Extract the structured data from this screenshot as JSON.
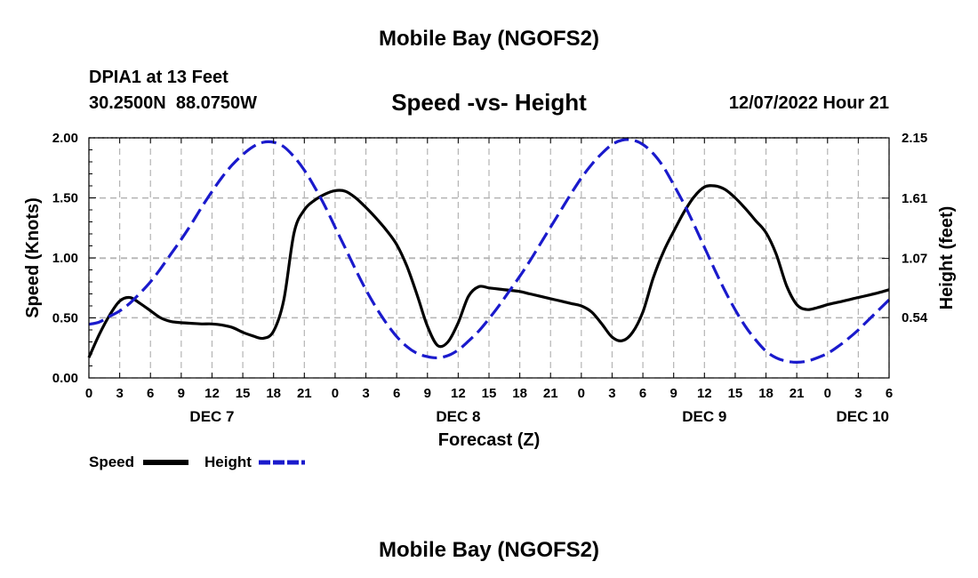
{
  "header": {
    "main_title": "Mobile Bay (NGOFS2)",
    "station": "DPIA1 at 13 Feet",
    "coords": "30.2500N  88.0750W",
    "subtitle": "Speed -vs- Height",
    "datetime": "12/07/2022 Hour 21"
  },
  "footer": {
    "title": "Mobile Bay (NGOFS2)"
  },
  "colors": {
    "speed": "#000000",
    "height": "#1a1acc",
    "grid": "#b4b4b4"
  },
  "chart_data": {
    "type": "line",
    "title": "Speed -vs- Height",
    "xlabel": "Forecast (Z)",
    "ylabel_left": "Speed (Knots)",
    "ylabel_right": "Height (feet)",
    "x_unit": "hours since 2022-12-07 00Z",
    "xlim": [
      0,
      78
    ],
    "ylim_left": [
      0,
      2.0
    ],
    "ylim_right": [
      0.0,
      2.15
    ],
    "left_ticks": [
      "0.00",
      "0.50",
      "1.00",
      "1.50",
      "2.00"
    ],
    "right_ticks": [
      "0.54",
      "1.07",
      "1.61",
      "2.15"
    ],
    "right_tick_values": [
      0.54,
      1.07,
      1.61,
      2.15
    ],
    "x_tick_labels": [
      "0",
      "3",
      "6",
      "9",
      "12",
      "15",
      "18",
      "21",
      "0",
      "3",
      "6",
      "9",
      "12",
      "15",
      "18",
      "21",
      "0",
      "3",
      "6",
      "9",
      "12",
      "15",
      "18",
      "21",
      "0",
      "3",
      "6"
    ],
    "date_labels": [
      {
        "label": "DEC 7",
        "hour": 12
      },
      {
        "label": "DEC 8",
        "hour": 36
      },
      {
        "label": "DEC 9",
        "hour": 60
      },
      {
        "label": "DEC 10",
        "hour": 78
      }
    ],
    "legend": [
      {
        "name": "Speed",
        "style": "solid"
      },
      {
        "name": "Height",
        "style": "dashed"
      }
    ],
    "series": [
      {
        "name": "Speed",
        "axis": "left",
        "style": "solid",
        "x": [
          0,
          1,
          2,
          3,
          4,
          5,
          6,
          7,
          8,
          9,
          10,
          11,
          12,
          13,
          14,
          15,
          16,
          17,
          18,
          19,
          20,
          21,
          22,
          23,
          24,
          25,
          26,
          27,
          28,
          29,
          30,
          31,
          32,
          33,
          34,
          35,
          36,
          37,
          38,
          39,
          40,
          41,
          42,
          43,
          44,
          45,
          46,
          47,
          48,
          49,
          50,
          51,
          52,
          53,
          54,
          55,
          56,
          57,
          58,
          59,
          60,
          61,
          62,
          63,
          64,
          65,
          66,
          67,
          68,
          69,
          70,
          71,
          72,
          73,
          74,
          75,
          76,
          77,
          78
        ],
        "values": [
          0.17,
          0.36,
          0.52,
          0.64,
          0.67,
          0.62,
          0.56,
          0.5,
          0.47,
          0.46,
          0.455,
          0.45,
          0.45,
          0.44,
          0.42,
          0.38,
          0.35,
          0.33,
          0.39,
          0.65,
          1.21,
          1.4,
          1.48,
          1.53,
          1.56,
          1.555,
          1.5,
          1.42,
          1.33,
          1.23,
          1.11,
          0.93,
          0.69,
          0.43,
          0.27,
          0.3,
          0.46,
          0.68,
          0.76,
          0.75,
          0.74,
          0.73,
          0.72,
          0.7,
          0.68,
          0.66,
          0.64,
          0.62,
          0.6,
          0.55,
          0.45,
          0.34,
          0.31,
          0.38,
          0.55,
          0.83,
          1.05,
          1.22,
          1.38,
          1.51,
          1.59,
          1.6,
          1.57,
          1.5,
          1.41,
          1.31,
          1.21,
          1.03,
          0.77,
          0.61,
          0.57,
          0.585,
          0.61,
          0.63,
          0.65,
          0.67,
          0.69,
          0.71,
          0.735
        ]
      },
      {
        "name": "Height",
        "axis": "right",
        "style": "dashed",
        "x": [
          0,
          1,
          2,
          3,
          4,
          5,
          6,
          7,
          8,
          9,
          10,
          11,
          12,
          13,
          14,
          15,
          16,
          17,
          18,
          19,
          20,
          21,
          22,
          23,
          24,
          25,
          26,
          27,
          28,
          29,
          30,
          31,
          32,
          33,
          34,
          35,
          36,
          37,
          38,
          39,
          40,
          41,
          42,
          43,
          44,
          45,
          46,
          47,
          48,
          49,
          50,
          51,
          52,
          53,
          54,
          55,
          56,
          57,
          58,
          59,
          60,
          61,
          62,
          63,
          64,
          65,
          66,
          67,
          68,
          69,
          70,
          71,
          72,
          73,
          74,
          75,
          76,
          77,
          78
        ],
        "values": [
          0.48,
          0.5,
          0.55,
          0.6,
          0.67,
          0.76,
          0.86,
          0.98,
          1.11,
          1.24,
          1.38,
          1.53,
          1.67,
          1.8,
          1.91,
          2.0,
          2.07,
          2.11,
          2.11,
          2.07,
          1.98,
          1.86,
          1.71,
          1.54,
          1.35,
          1.16,
          0.97,
          0.79,
          0.63,
          0.49,
          0.37,
          0.28,
          0.22,
          0.19,
          0.18,
          0.2,
          0.25,
          0.33,
          0.42,
          0.53,
          0.65,
          0.78,
          0.91,
          1.05,
          1.2,
          1.35,
          1.5,
          1.65,
          1.79,
          1.91,
          2.01,
          2.09,
          2.13,
          2.13,
          2.09,
          2.01,
          1.89,
          1.73,
          1.56,
          1.37,
          1.17,
          0.97,
          0.78,
          0.61,
          0.46,
          0.34,
          0.24,
          0.18,
          0.15,
          0.14,
          0.15,
          0.18,
          0.22,
          0.28,
          0.35,
          0.43,
          0.52,
          0.61,
          0.7
        ]
      }
    ]
  }
}
